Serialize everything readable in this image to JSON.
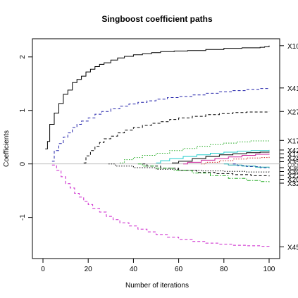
{
  "chart_data": {
    "type": "line",
    "title": "Singboost coefficient paths",
    "xlabel": "Number of iterations",
    "ylabel": "Coefficients",
    "xlim": [
      0,
      100
    ],
    "ylim": [
      -1.65,
      2.3
    ],
    "xticks": [
      0,
      20,
      40,
      60,
      80,
      100
    ],
    "yticks": [
      -1,
      0,
      1,
      2
    ],
    "xtick_labels": [
      "0",
      "20",
      "40",
      "60",
      "80",
      "100"
    ],
    "ytick_labels": [
      "-1",
      "0",
      "1",
      "2"
    ],
    "zero_line": true,
    "grid": false,
    "series": [
      {
        "name": "X10",
        "color": "#000000",
        "dash": "solid",
        "points": [
          [
            1,
            0.28
          ],
          [
            2,
            0.42
          ],
          [
            3,
            0.74
          ],
          [
            5,
            0.95
          ],
          [
            7,
            1.13
          ],
          [
            9,
            1.3
          ],
          [
            11,
            1.38
          ],
          [
            13,
            1.52
          ],
          [
            15,
            1.58
          ],
          [
            17,
            1.64
          ],
          [
            19,
            1.72
          ],
          [
            21,
            1.77
          ],
          [
            23,
            1.82
          ],
          [
            25,
            1.86
          ],
          [
            27,
            1.89
          ],
          [
            30,
            1.94
          ],
          [
            33,
            1.98
          ],
          [
            36,
            2.01
          ],
          [
            40,
            2.04
          ],
          [
            44,
            2.06
          ],
          [
            48,
            2.08
          ],
          [
            52,
            2.1
          ],
          [
            58,
            2.11
          ],
          [
            64,
            2.12
          ],
          [
            72,
            2.14
          ],
          [
            80,
            2.16
          ],
          [
            88,
            2.17
          ],
          [
            96,
            2.18
          ],
          [
            98,
            2.19
          ],
          [
            100,
            2.21
          ]
        ]
      },
      {
        "name": "X41",
        "color": "#2222aa",
        "dash": "dashed",
        "points": [
          [
            4,
            0.05
          ],
          [
            5,
            0.25
          ],
          [
            7,
            0.38
          ],
          [
            9,
            0.5
          ],
          [
            11,
            0.58
          ],
          [
            13,
            0.68
          ],
          [
            15,
            0.74
          ],
          [
            17,
            0.8
          ],
          [
            20,
            0.86
          ],
          [
            23,
            0.93
          ],
          [
            26,
            0.98
          ],
          [
            30,
            1.03
          ],
          [
            34,
            1.08
          ],
          [
            38,
            1.12
          ],
          [
            42,
            1.15
          ],
          [
            46,
            1.18
          ],
          [
            50,
            1.21
          ],
          [
            55,
            1.24
          ],
          [
            60,
            1.26
          ],
          [
            66,
            1.29
          ],
          [
            72,
            1.32
          ],
          [
            78,
            1.35
          ],
          [
            84,
            1.37
          ],
          [
            90,
            1.39
          ],
          [
            96,
            1.41
          ],
          [
            100,
            1.42
          ]
        ]
      },
      {
        "name": "X27",
        "color": "#000000",
        "dash": "dashed",
        "points": [
          [
            18,
            0.02
          ],
          [
            19,
            0.15
          ],
          [
            21,
            0.25
          ],
          [
            23,
            0.33
          ],
          [
            25,
            0.4
          ],
          [
            27,
            0.47
          ],
          [
            30,
            0.52
          ],
          [
            33,
            0.58
          ],
          [
            36,
            0.63
          ],
          [
            40,
            0.68
          ],
          [
            44,
            0.72
          ],
          [
            48,
            0.76
          ],
          [
            52,
            0.79
          ],
          [
            56,
            0.83
          ],
          [
            60,
            0.86
          ],
          [
            66,
            0.89
          ],
          [
            72,
            0.92
          ],
          [
            78,
            0.94
          ],
          [
            84,
            0.96
          ],
          [
            90,
            0.97
          ],
          [
            100,
            0.98
          ]
        ]
      },
      {
        "name": "X17",
        "color": "#22aa22",
        "dash": "dotted",
        "points": [
          [
            34,
            0.02
          ],
          [
            36,
            0.08
          ],
          [
            40,
            0.12
          ],
          [
            44,
            0.16
          ],
          [
            50,
            0.2
          ],
          [
            56,
            0.25
          ],
          [
            62,
            0.29
          ],
          [
            68,
            0.33
          ],
          [
            74,
            0.36
          ],
          [
            80,
            0.39
          ],
          [
            86,
            0.41
          ],
          [
            92,
            0.43
          ],
          [
            100,
            0.44
          ]
        ]
      },
      {
        "name": "X42",
        "color": "#22cccc",
        "dash": "solid",
        "points": [
          [
            50,
            0.02
          ],
          [
            52,
            0.06
          ],
          [
            56,
            0.1
          ],
          [
            62,
            0.14
          ],
          [
            68,
            0.17
          ],
          [
            74,
            0.2
          ],
          [
            80,
            0.22
          ],
          [
            86,
            0.24
          ],
          [
            92,
            0.25
          ],
          [
            100,
            0.26
          ]
        ]
      },
      {
        "name": "X13",
        "color": "#000000",
        "dash": "solid",
        "points": [
          [
            57,
            0.02
          ],
          [
            60,
            0.05
          ],
          [
            66,
            0.1
          ],
          [
            72,
            0.14
          ],
          [
            78,
            0.17
          ],
          [
            84,
            0.19
          ],
          [
            90,
            0.21
          ],
          [
            96,
            0.22
          ],
          [
            100,
            0.23
          ]
        ]
      },
      {
        "name": "X24",
        "color": "#cc2299",
        "dash": "solid",
        "points": [
          [
            62,
            0.0
          ],
          [
            64,
            0.03
          ],
          [
            70,
            0.07
          ],
          [
            76,
            0.1
          ],
          [
            82,
            0.13
          ],
          [
            88,
            0.16
          ],
          [
            94,
            0.18
          ],
          [
            100,
            0.19
          ]
        ]
      },
      {
        "name": "X35",
        "color": "#cc2222",
        "dash": "dotted",
        "points": [
          [
            70,
            0.0
          ],
          [
            72,
            0.03
          ],
          [
            78,
            0.06
          ],
          [
            84,
            0.09
          ],
          [
            90,
            0.11
          ],
          [
            96,
            0.12
          ],
          [
            100,
            0.13
          ]
        ]
      },
      {
        "name": "X39",
        "color": "#2222aa",
        "dash": "dashed",
        "points": [
          [
            84,
            0.0
          ],
          [
            86,
            -0.03
          ],
          [
            90,
            -0.05
          ],
          [
            96,
            -0.07
          ],
          [
            100,
            -0.08
          ]
        ]
      },
      {
        "name": "X36",
        "color": "#22aaaa",
        "dash": "solid",
        "points": [
          [
            80,
            0.0
          ],
          [
            82,
            -0.02
          ],
          [
            88,
            -0.04
          ],
          [
            94,
            -0.06
          ],
          [
            100,
            -0.07
          ]
        ]
      },
      {
        "name": "X22",
        "color": "#000000",
        "dash": "dotted",
        "points": [
          [
            29,
            0.0
          ],
          [
            32,
            -0.04
          ],
          [
            40,
            -0.07
          ],
          [
            50,
            -0.1
          ],
          [
            60,
            -0.12
          ],
          [
            70,
            -0.13
          ],
          [
            80,
            -0.14
          ],
          [
            90,
            -0.15
          ],
          [
            100,
            -0.16
          ]
        ]
      },
      {
        "name": "X20",
        "color": "#000000",
        "dash": "dashed",
        "points": [
          [
            44,
            0.0
          ],
          [
            46,
            -0.04
          ],
          [
            52,
            -0.08
          ],
          [
            60,
            -0.12
          ],
          [
            68,
            -0.16
          ],
          [
            76,
            -0.18
          ],
          [
            84,
            -0.2
          ],
          [
            92,
            -0.22
          ],
          [
            100,
            -0.23
          ]
        ]
      },
      {
        "name": "X32",
        "color": "#22aa22",
        "dash": "dashdot",
        "points": [
          [
            42,
            0.0
          ],
          [
            44,
            -0.04
          ],
          [
            50,
            -0.08
          ],
          [
            58,
            -0.12
          ],
          [
            66,
            -0.17
          ],
          [
            74,
            -0.22
          ],
          [
            82,
            -0.27
          ],
          [
            90,
            -0.31
          ],
          [
            96,
            -0.33
          ],
          [
            100,
            -0.34
          ]
        ]
      },
      {
        "name": "X45",
        "color": "#cc22cc",
        "dash": "dashed",
        "points": [
          [
            4,
            -0.02
          ],
          [
            6,
            -0.12
          ],
          [
            8,
            -0.24
          ],
          [
            10,
            -0.37
          ],
          [
            12,
            -0.45
          ],
          [
            14,
            -0.55
          ],
          [
            16,
            -0.62
          ],
          [
            18,
            -0.7
          ],
          [
            20,
            -0.76
          ],
          [
            22,
            -0.83
          ],
          [
            25,
            -0.9
          ],
          [
            28,
            -0.98
          ],
          [
            31,
            -1.04
          ],
          [
            34,
            -1.1
          ],
          [
            38,
            -1.16
          ],
          [
            42,
            -1.22
          ],
          [
            46,
            -1.27
          ],
          [
            50,
            -1.32
          ],
          [
            55,
            -1.37
          ],
          [
            60,
            -1.41
          ],
          [
            66,
            -1.45
          ],
          [
            72,
            -1.48
          ],
          [
            78,
            -1.5
          ],
          [
            84,
            -1.52
          ],
          [
            90,
            -1.53
          ],
          [
            96,
            -1.54
          ],
          [
            100,
            -1.55
          ]
        ]
      }
    ]
  }
}
